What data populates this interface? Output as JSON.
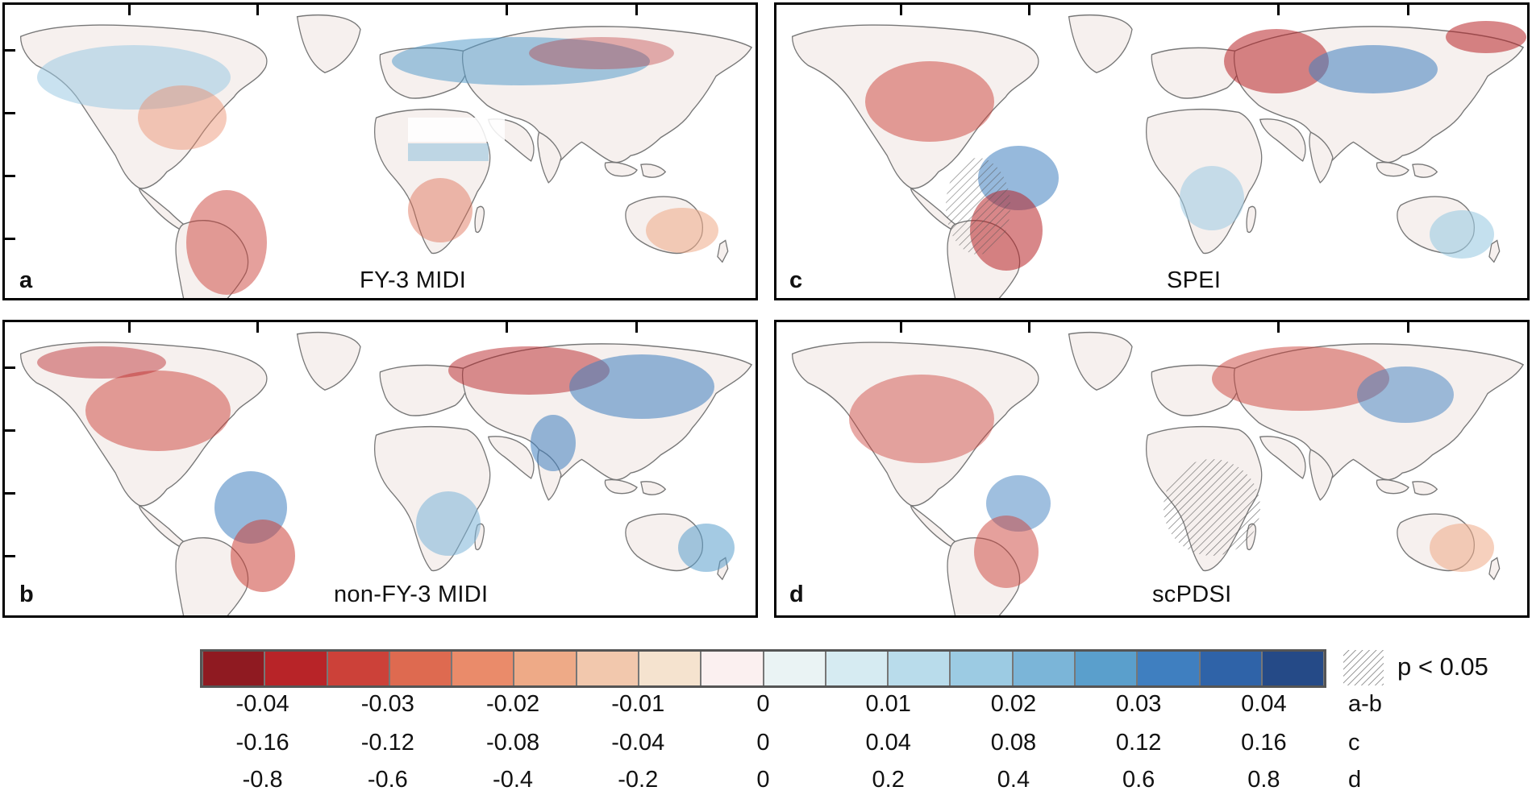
{
  "panels": [
    {
      "letter": "a",
      "title": "FY-3 MIDI"
    },
    {
      "letter": "b",
      "title": "non-FY-3 MIDI"
    },
    {
      "letter": "c",
      "title": "SPEI"
    },
    {
      "letter": "d",
      "title": "scPDSI"
    }
  ],
  "colorbar": {
    "colors": [
      "#8f1a21",
      "#b82428",
      "#cc4139",
      "#de6a50",
      "#ea8b6a",
      "#eeaa87",
      "#f2c8ad",
      "#f5e3cf",
      "#fbf0f0",
      "#eaf3f4",
      "#d6ebf2",
      "#b9dceb",
      "#9ccbe3",
      "#7bb5d8",
      "#5a9fcc",
      "#3f7fc0",
      "#2f63a8",
      "#254a87"
    ],
    "rows": [
      {
        "label": "a-b",
        "ticks": [
          "-0.04",
          "-0.03",
          "-0.02",
          "-0.01",
          "0",
          "0.01",
          "0.02",
          "0.03",
          "0.04"
        ]
      },
      {
        "label": "c",
        "ticks": [
          "-0.16",
          "-0.12",
          "-0.08",
          "-0.04",
          "0",
          "0.04",
          "0.08",
          "0.12",
          "0.16"
        ]
      },
      {
        "label": "d",
        "ticks": [
          "-0.8",
          "-0.6",
          "-0.4",
          "-0.2",
          "0",
          "0.2",
          "0.4",
          "0.6",
          "0.8"
        ]
      }
    ]
  },
  "significance": {
    "label": "p < 0.05"
  }
}
